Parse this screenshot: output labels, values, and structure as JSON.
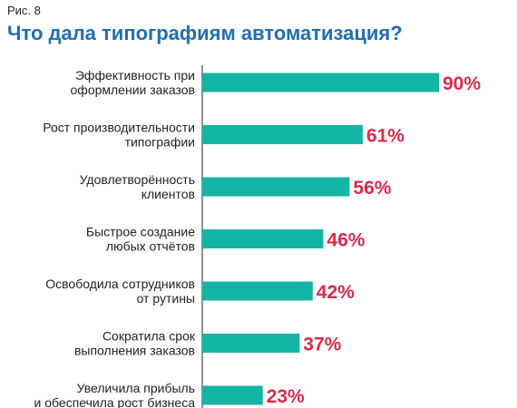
{
  "figure_label": "Рис. 8",
  "chart_data": {
    "type": "bar",
    "orientation": "horizontal",
    "title": "Что дала типографиям автоматизация?",
    "categories": [
      [
        "Эффективность при",
        "оформлении заказов"
      ],
      [
        "Рост производительности",
        "типографии"
      ],
      [
        "Удовлетворённость",
        "клиентов"
      ],
      [
        "Быстрое создание",
        "любых отчётов"
      ],
      [
        "Освободила сотрудников",
        "от рутины"
      ],
      [
        "Сократила срок",
        "выполнения заказов"
      ],
      [
        "Увеличила прибыль",
        "и обеспечила рост бизнеса"
      ]
    ],
    "values": [
      90,
      61,
      56,
      46,
      42,
      37,
      23
    ],
    "value_labels": [
      "90%",
      "61%",
      "56%",
      "46%",
      "42%",
      "37%",
      "23%"
    ],
    "unit": "%",
    "xlim": [
      0,
      100
    ],
    "grid": false,
    "legend": "none",
    "colors": {
      "bar": "#12b5a4",
      "value_label": "#e0294a",
      "axis": "#222222",
      "title": "#1f6fb3"
    }
  }
}
